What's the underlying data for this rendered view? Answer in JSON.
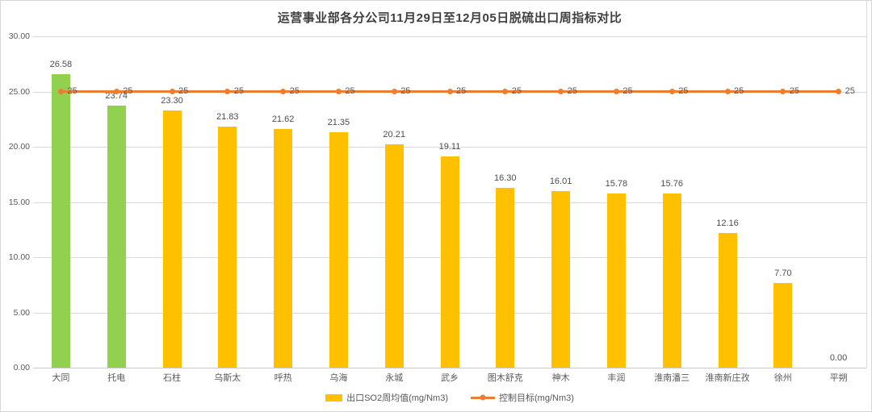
{
  "chart_data": {
    "type": "bar",
    "title": "运营事业部各分公司11月29日至12月05日脱硫出口周指标对比",
    "categories": [
      "大同",
      "托电",
      "石柱",
      "乌斯太",
      "呼热",
      "乌海",
      "永城",
      "武乡",
      "图木舒克",
      "神木",
      "丰润",
      "淮南潘三",
      "淮南新庄孜",
      "徐州",
      "平朔"
    ],
    "series": [
      {
        "name": "出口SO2周均值(mg/Nm3)",
        "type": "bar",
        "values": [
          26.58,
          23.74,
          23.3,
          21.83,
          21.62,
          21.35,
          20.21,
          19.11,
          16.3,
          16.01,
          15.78,
          15.76,
          12.16,
          7.7,
          0.0
        ],
        "labels": [
          "26.58",
          "23.74",
          "23.30",
          "21.83",
          "21.62",
          "21.35",
          "20.21",
          "19.11",
          "16.30",
          "16.01",
          "15.78",
          "15.76",
          "12.16",
          "7.70",
          "0.00"
        ],
        "bar_colors": [
          "#92D050",
          "#92D050",
          "#FFC000",
          "#FFC000",
          "#FFC000",
          "#FFC000",
          "#FFC000",
          "#FFC000",
          "#FFC000",
          "#FFC000",
          "#FFC000",
          "#FFC000",
          "#FFC000",
          "#FFC000",
          "#FFC000"
        ]
      },
      {
        "name": "控制目标(mg/Nm3)",
        "type": "line",
        "values": [
          25,
          25,
          25,
          25,
          25,
          25,
          25,
          25,
          25,
          25,
          25,
          25,
          25,
          25,
          25
        ],
        "labels": [
          "25",
          "25",
          "25",
          "25",
          "25",
          "25",
          "25",
          "25",
          "25",
          "25",
          "25",
          "25",
          "25",
          "25",
          "25"
        ],
        "color": "#ED7D31"
      }
    ],
    "xlabel": "",
    "ylabel": "",
    "ylim": [
      0,
      30
    ],
    "y_ticks": [
      "30.00",
      "25.00",
      "20.00",
      "15.00",
      "10.00",
      "5.00",
      "0.00"
    ],
    "grid": true,
    "legend_position": "bottom"
  },
  "colors": {
    "bar_default": "#FFC000",
    "bar_highlight": "#92D050",
    "target_line": "#ED7D31",
    "gridline": "#d9d9d9",
    "axis_text": "#595959",
    "title_text": "#3f3f3f",
    "background": "#ffffff"
  }
}
